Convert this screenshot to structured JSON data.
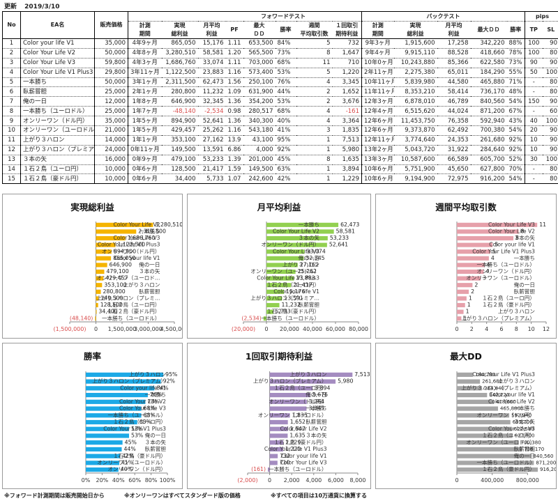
{
  "header": {
    "updated_label": "更新",
    "updated_date": "2019/3/10"
  },
  "table": {
    "group_headers": {
      "forward": "フォワードテスト",
      "backtest": "バックテスト",
      "pips": "pips"
    },
    "col_headers": {
      "no": "No",
      "ea": "EA名",
      "price": "販売価格",
      "fw_period_1": "計測",
      "fw_period_2": "期間",
      "fw_total_1": "実現",
      "fw_total_2": "総利益",
      "fw_monthly_1": "月平均",
      "fw_monthly_2": "利益",
      "fw_pf": "PF",
      "fw_dd_1": "最大",
      "fw_dd_2": "ＤＤ",
      "fw_win": "勝率",
      "fw_weekly_1": "週間",
      "fw_weekly_2": "平均取引数",
      "fw_expect_1": "１回取引",
      "fw_expect_2": "期待利益",
      "bt_period_1": "計測",
      "bt_period_2": "期間",
      "bt_total_1": "実現",
      "bt_total_2": "総利益",
      "bt_monthly_1": "月平均",
      "bt_monthly_2": "利益",
      "bt_dd": "最大ＤＤ",
      "bt_win": "勝率",
      "tp": "TP",
      "sl": "SL"
    },
    "rows": [
      {
        "no": "1",
        "ea": "Color your life V1",
        "price": "35,000",
        "fp": "4年9ヶ月",
        "ft": "865,050",
        "fm": "15,176",
        "pf": "1.11",
        "fdd": "653,500",
        "fw": "84%",
        "wk": "5",
        "ex": "732",
        "bp": "9年3ヶ月",
        "bt": "1,915,600",
        "bm": "17,258",
        "bdd": "342,220",
        "bw": "88%",
        "tp": "100",
        "sl": "90"
      },
      {
        "no": "2",
        "ea": "Color Your Life V2",
        "price": "50,000",
        "fp": "4年8ヶ月",
        "ft": "3,280,510",
        "fm": "58,581",
        "pf": "1.20",
        "fdd": "565,500",
        "fw": "73%",
        "wk": "8",
        "ex": "1,647",
        "bp": "9年4ヶ月",
        "bt": "9,915,110",
        "bm": "88,528",
        "bdd": "418,660",
        "bw": "78%",
        "tp": "100",
        "sl": "80"
      },
      {
        "no": "3",
        "ea": "Color Your Life V3",
        "price": "59,800",
        "fp": "4年3ヶ月",
        "ft": "1,686,760",
        "fm": "33,074",
        "pf": "1.11",
        "fdd": "703,000",
        "fw": "68%",
        "wk": "11",
        "ex": "710",
        "bp": "10年0ヶ月",
        "bt": "10,243,880",
        "bm": "85,366",
        "bdd": "622,580",
        "bw": "73%",
        "tp": "90",
        "sl": "90"
      },
      {
        "no": "4",
        "ea": "Color Your Life V1 Plus3",
        "price": "29,800",
        "fp": "3年11ヶ月",
        "ft": "1,122,500",
        "fm": "23,883",
        "pf": "1.16",
        "fdd": "573,400",
        "fw": "53%",
        "wk": "5",
        "ex": "1,220",
        "bp": "2年11ヶ月",
        "bt": "2,275,380",
        "bm": "65,011",
        "bdd": "184,290",
        "bw": "55%",
        "tp": "50",
        "sl": "100"
      },
      {
        "no": "5",
        "ea": "一本勝ち",
        "price": "50,000",
        "fp": "3年1ヶ月",
        "ft": "2,311,500",
        "fm": "62,473",
        "pf": "1.56",
        "fdd": "250,100",
        "fw": "76%",
        "wk": "4",
        "ex": "3,345",
        "bp": "10年11ヶ月",
        "bt": "5,839,980",
        "bm": "44,580",
        "bdd": "465,880",
        "bw": "71%",
        "tp": "-",
        "sl": "80"
      },
      {
        "no": "6",
        "ea": "臥薪嘗胆",
        "price": "25,000",
        "fp": "2年1ヶ月",
        "ft": "280,800",
        "fm": "11,232",
        "pf": "1.09",
        "fdd": "631,900",
        "fw": "44%",
        "wk": "2",
        "ex": "1,652",
        "bp": "11年11ヶ月",
        "bt": "8,353,210",
        "bm": "58,414",
        "bdd": "736,170",
        "bw": "48%",
        "tp": "-",
        "sl": "80"
      },
      {
        "no": "7",
        "ea": "俺の一日",
        "price": "12,000",
        "fp": "1年8ヶ月",
        "ft": "646,900",
        "fm": "32,345",
        "pf": "1.36",
        "fdd": "354,200",
        "fw": "53%",
        "wk": "2",
        "ex": "3,676",
        "bp": "12年3ヶ月",
        "bt": "6,878,010",
        "bm": "46,789",
        "bdd": "840,560",
        "bw": "54%",
        "tp": "150",
        "sl": "90"
      },
      {
        "no": "8",
        "ea": "一本勝ち（ユーロドル）",
        "price": "25,000",
        "fp": "1年7ヶ月",
        "ft": "-48,140",
        "fm": "-2,534",
        "pf": "0.98",
        "fdd": "280,517",
        "fw": "68%",
        "wk": "4",
        "ex": "-161",
        "bp": "12年4ヶ月",
        "bt": "6,515,620",
        "bm": "44,024",
        "bdd": "871,200",
        "bw": "67%",
        "tp": "-",
        "sl": "60"
      },
      {
        "no": "9",
        "ea": "オンリーワン（ドル円）",
        "price": "35,000",
        "fp": "1年5ヶ月",
        "ft": "894,900",
        "fm": "52,641",
        "pf": "1.36",
        "fdd": "340,300",
        "fw": "40%",
        "wk": "4",
        "ex": "3,364",
        "bp": "12年6ヶ月",
        "bt": "11,453,750",
        "bm": "76,358",
        "bdd": "592,940",
        "bw": "43%",
        "tp": "40",
        "sl": "100"
      },
      {
        "no": "10",
        "ea": "オンリーワン（ユーロドル）",
        "price": "21,000",
        "fp": "1年5ヶ月",
        "ft": "429,457",
        "fm": "25,262",
        "pf": "1.16",
        "fdd": "543,180",
        "fw": "41%",
        "wk": "3",
        "ex": "1,835",
        "bp": "12年6ヶ月",
        "bt": "9,373,870",
        "bm": "62,492",
        "bdd": "700,380",
        "bw": "54%",
        "tp": "20",
        "sl": "90"
      },
      {
        "no": "11",
        "ea": "上がり３ハロン",
        "price": "14,000",
        "fp": "1年1ヶ月",
        "ft": "353,100",
        "fm": "27,162",
        "pf": "13.9",
        "fdd": "43,100",
        "fw": "95%",
        "wk": "1",
        "ex": "7,513",
        "bp": "12年11ヶ月",
        "bt": "3,774,640",
        "bm": "24,353",
        "bdd": "261,680",
        "bw": "92%",
        "tp": "10",
        "sl": "90"
      },
      {
        "no": "12",
        "ea": "上がり３ハロン（プレミアム）",
        "price": "24,000",
        "fp": "0年11ヶ月",
        "ft": "149,500",
        "fm": "13,591",
        "pf": "6.86",
        "fdd": "4,000",
        "fw": "92%",
        "wk": "1",
        "ex": "5,980",
        "bp": "13年2ヶ月",
        "bt": "5,043,720",
        "bm": "31,922",
        "bdd": "284,640",
        "bw": "92%",
        "tp": "10",
        "sl": "90"
      },
      {
        "no": "13",
        "ea": "３本の矢",
        "price": "16,000",
        "fp": "0年9ヶ月",
        "ft": "479,100",
        "fm": "53,233",
        "pf": "1.39",
        "fdd": "201,000",
        "fw": "45%",
        "wk": "8",
        "ex": "1,635",
        "bp": "13年3ヶ月",
        "bt": "10,587,600",
        "bm": "66,589",
        "bdd": "605,700",
        "bw": "52%",
        "tp": "30",
        "sl": "100"
      },
      {
        "no": "14",
        "ea": "１石２鳥（ユーロ円）",
        "price": "10,000",
        "fp": "0年6ヶ月",
        "ft": "128,500",
        "fm": "21,417",
        "pf": "1.59",
        "fdd": "149,500",
        "fw": "63%",
        "wk": "1",
        "ex": "3,894",
        "bp": "10年6ヶ月",
        "bt": "5,751,900",
        "bm": "45,650",
        "bdd": "627,800",
        "bw": "70%",
        "tp": "-",
        "sl": "80"
      },
      {
        "no": "15",
        "ea": "１石２鳥（豪ドル円）",
        "price": "10,000",
        "fp": "0年6ヶ月",
        "ft": "34,400",
        "fm": "5,733",
        "pf": "1.07",
        "fdd": "242,600",
        "fw": "42%",
        "wk": "1",
        "ex": "1,229",
        "bp": "10年6ヶ月",
        "bt": "9,194,900",
        "bm": "72,975",
        "bdd": "916,200",
        "bw": "54%",
        "tp": "-",
        "sl": "80"
      }
    ]
  },
  "chart_data": [
    {
      "id": "total",
      "type": "bar",
      "orientation": "horizontal",
      "title": "実現総利益",
      "color": "#f5b400",
      "categories": [
        "Color Your Life V2",
        "一本勝ち",
        "Color Your Life V3",
        "Color Your Life V1 Plus3",
        "オンリーワン（ドル円）",
        "Color your life V1",
        "俺の一日",
        "３本の矢",
        "オンリーワン（ユーロド…",
        "上がり３ハロン",
        "臥薪嘗胆",
        "上がり３ハロン（プレミ…",
        "１石２鳥（ユーロ円）",
        "１石２鳥（豪ドル円）",
        "一本勝ち（ユーロドル）"
      ],
      "values": [
        3280510,
        2311500,
        1686760,
        1122500,
        894900,
        865050,
        646900,
        479100,
        429457,
        353100,
        280800,
        149500,
        128500,
        34400,
        -48140
      ],
      "value_labels": [
        "3,280,510",
        "2,311,500",
        "1,686,760",
        "1,122,500",
        "894,900",
        "865,050",
        "646,900",
        "479,100",
        "429,457",
        "353,100",
        "280,800",
        "149,500",
        "128,500",
        "34,400",
        "(48,140)"
      ],
      "xlim": [
        -1500000,
        4500000
      ],
      "ticks": [
        -1500000,
        0,
        1500000,
        3000000,
        4500000
      ],
      "tick_labels": [
        "(1,500,000)",
        "0",
        "1,500,000",
        "3,000,000",
        "4,500,000"
      ],
      "grid": false
    },
    {
      "id": "monthly",
      "type": "bar",
      "orientation": "horizontal",
      "title": "月平均利益",
      "color": "#92d050",
      "categories": [
        "一本勝ち",
        "Color Your Life V2",
        "３本の矢",
        "オンリーワン（ドル円）",
        "Color Your Life V3",
        "俺の一日",
        "上がり３ハロン",
        "オンリーワン（ユーロドル）",
        "Color Your Life V1 Plus3",
        "１石２鳥（ユーロ円）",
        "Color your life V1",
        "上がり３ハロン（プレミア…",
        "臥薪嘗胆",
        "１石２鳥（豪ドル円）",
        "一本勝ち（ユーロドル）"
      ],
      "values": [
        62473,
        58581,
        53233,
        52641,
        33074,
        32345,
        27162,
        25262,
        23883,
        21417,
        15176,
        13591,
        11232,
        5733,
        -2534
      ],
      "value_labels": [
        "62,473",
        "58,581",
        "53,233",
        "52,641",
        "33,074",
        "32,345",
        "27,162",
        "25,262",
        "23,883",
        "21,417",
        "15,176",
        "13,591",
        "11,232",
        "5,733",
        "(2,534)"
      ],
      "xlim": [
        -20000,
        80000
      ],
      "ticks": [
        -20000,
        0,
        20000,
        40000,
        60000,
        80000
      ],
      "tick_labels": [
        "(20,000)",
        "0",
        "20,000",
        "40,000",
        "60,000",
        "80,000"
      ],
      "grid": false
    },
    {
      "id": "weekly",
      "type": "bar",
      "orientation": "horizontal",
      "title": "週間平均取引数",
      "color": "#e6a0aa",
      "categories": [
        "Color Your Life V3",
        "Color Your Life V2",
        "３本の矢",
        "Color your life V1",
        "Color Your Life V1 Plus3",
        "一本勝ち",
        "一本勝ち（ユーロドル）",
        "オンリーワン（ドル円）",
        "オンリーワン（ユーロドル）",
        "俺の一日",
        "臥薪嘗胆",
        "１石２鳥（ユーロ円）",
        "１石２鳥（豪ドル円）",
        "上がり３ハロン",
        "上がり３ハロン（プレミアム）"
      ],
      "values": [
        10.8,
        8.3,
        7.6,
        4.8,
        4.5,
        4.3,
        3.7,
        3.6,
        3.2,
        2.1,
        1.6,
        1.3,
        1.1,
        0.9,
        0.6
      ],
      "value_labels": [
        "11",
        "8",
        "8",
        "5",
        "5",
        "4",
        "4",
        "4",
        "3",
        "2",
        "2",
        "1",
        "1",
        "1",
        "1"
      ],
      "xlim": [
        0,
        12
      ],
      "ticks": [
        0,
        2,
        4,
        6,
        8,
        10,
        12
      ],
      "tick_labels": [
        "0",
        "2",
        "4",
        "6",
        "8",
        "10",
        "12"
      ],
      "grid": false
    },
    {
      "id": "winrate",
      "type": "bar",
      "orientation": "horizontal",
      "title": "勝率",
      "color": "#1ca9e6",
      "categories": [
        "上がり３ハロン",
        "上がり３ハロン（プレミアム）",
        "Color your life V1",
        "一本勝ち",
        "Color Your Life V2",
        "Color Your Life V3",
        "一本勝ち（ユーロドル）",
        "１石２鳥（ユーロ円）",
        "Color Your Life V1 Plus3",
        "俺の一日",
        "３本の矢",
        "臥薪嘗胆",
        "１石２鳥（豪ドル円）",
        "オンリーワン（ユーロドル）",
        "オンリーワン（ドル円）"
      ],
      "values": [
        95,
        92,
        84,
        76,
        73,
        68,
        68,
        63,
        53,
        53,
        45,
        44,
        42,
        41,
        40
      ],
      "value_labels": [
        "95%",
        "92%",
        "84%",
        "76%",
        "73%",
        "68%",
        "68%",
        "63%",
        "53%",
        "53%",
        "45%",
        "44%",
        "42%",
        "41%",
        "40%"
      ],
      "xlim": [
        0,
        100
      ],
      "ticks": [
        0,
        20,
        40,
        60,
        80,
        100
      ],
      "tick_labels": [
        "0%",
        "20%",
        "40%",
        "60%",
        "80%",
        "100%"
      ],
      "grid": false
    },
    {
      "id": "expect",
      "type": "bar",
      "orientation": "horizontal",
      "title": "1回取引期待利益",
      "color": "#a48cc0",
      "categories": [
        "上がり３ハロン",
        "上がり３ハロン（プレミアム）",
        "１石２鳥（ユーロ円）",
        "俺の一日",
        "オンリーワン（ドル円）",
        "一本勝ち",
        "オンリーワン（ユーロドル）",
        "臥薪嘗胆",
        "Color Your Life V2",
        "３本の矢",
        "１石２鳥（豪ドル円）",
        "Color Your Life V1 Plus3",
        "Color your life V1",
        "Color Your Life V3",
        "一本勝ち（ユーロドル）"
      ],
      "values": [
        7513,
        5980,
        3894,
        3676,
        3364,
        3345,
        1835,
        1652,
        1647,
        1635,
        1229,
        1220,
        732,
        710,
        -161
      ],
      "value_labels": [
        "7,513",
        "5,980",
        "3,894",
        "3,676",
        "3,364",
        "3,345",
        "1,835",
        "1,652",
        "1,647",
        "1,635",
        "1,229",
        "1,220",
        "732",
        "710",
        "(161)"
      ],
      "xlim": [
        -2000,
        8000
      ],
      "ticks": [
        -2000,
        0,
        2000,
        4000,
        6000,
        8000
      ],
      "tick_labels": [
        "(2,000)",
        "0",
        "2,000",
        "4,000",
        "6,000",
        "8,000"
      ],
      "grid": false
    },
    {
      "id": "maxdd",
      "type": "bar",
      "orientation": "horizontal",
      "title": "最大DD",
      "color": "#a6a6a6",
      "categories": [
        "Color Your Life V1 Plus3",
        "上がり３ハロン",
        "上がり３ハロン（プレミアム）",
        "Color your life V1",
        "Color Your Life V2",
        "一本勝ち",
        "オンリーワン（ドル円）",
        "３本の矢",
        "Color Your Life V3",
        "１石２鳥（ユーロ円）",
        "オンリーワン（ユーロドル）",
        "臥薪嘗胆",
        "俺の一日",
        "一本勝ち（ユーロドル）",
        "１石２鳥（豪ドル円）"
      ],
      "values": [
        184290,
        261680,
        284640,
        342220,
        418660,
        465880,
        592940,
        605700,
        622580,
        627800,
        700380,
        736170,
        840560,
        871200,
        916200
      ],
      "value_labels": [
        "184,290",
        "261,680",
        "284,640",
        "342,220",
        "418,660",
        "465,880",
        "592,940",
        "605,700",
        "622,580",
        "627,800",
        "700,380",
        "736,170",
        "840,560",
        "871,200",
        "916,200"
      ],
      "xlim": [
        0,
        1200000
      ],
      "ticks": [
        0,
        400000,
        800000
      ],
      "tick_labels": [
        "0",
        "400,000",
        "800,000"
      ],
      "grid": false
    }
  ],
  "footnotes": [
    "※フォワード計測期間は販売開始日から",
    "※オンリーワンはすべてスタンダード版の価格",
    "※すべての項目は10万通貨に換算する"
  ],
  "colors": {
    "negative": "#d84a4a"
  }
}
